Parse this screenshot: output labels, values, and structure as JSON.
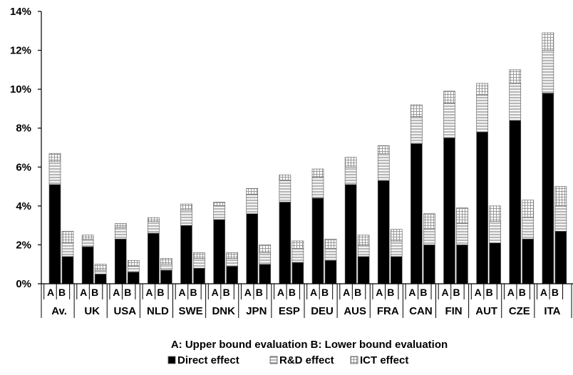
{
  "chart_data": {
    "type": "bar",
    "stacked": true,
    "title": "",
    "xlabel": "",
    "ylabel": "",
    "ylim": [
      0,
      14
    ],
    "y_ticks": [
      "0%",
      "2%",
      "4%",
      "6%",
      "8%",
      "10%",
      "12%",
      "14%"
    ],
    "grid": false,
    "legend_placement": "bottom",
    "bar_labels": [
      "A",
      "B"
    ],
    "categories": [
      "Av.",
      "UK",
      "USA",
      "NLD",
      "SWE",
      "DNK",
      "JPN",
      "ESP",
      "DEU",
      "AUS",
      "FRA",
      "CAN",
      "FIN",
      "AUT",
      "CZE",
      "ITA"
    ],
    "note": "A: Upper bound evaluation   B: Lower bound evaluation",
    "series": [
      {
        "name": "Direct effect",
        "color": "#000000",
        "pattern": "solid",
        "A": [
          5.1,
          1.9,
          2.3,
          2.6,
          3.0,
          3.3,
          3.6,
          4.2,
          4.4,
          5.1,
          5.3,
          7.2,
          7.5,
          7.8,
          8.4,
          9.8
        ],
        "B": [
          1.4,
          0.5,
          0.6,
          0.7,
          0.8,
          0.9,
          1.0,
          1.1,
          1.2,
          1.4,
          1.4,
          2.0,
          2.0,
          2.1,
          2.3,
          2.7
        ]
      },
      {
        "name": "R&D effect",
        "color": "#bfbfbf",
        "pattern": "horizontal-lines",
        "A": [
          1.2,
          0.4,
          0.6,
          0.6,
          0.8,
          0.7,
          1.0,
          1.1,
          1.1,
          0.9,
          1.4,
          1.4,
          1.8,
          1.9,
          1.9,
          2.2
        ],
        "B": [
          0.7,
          0.2,
          0.3,
          0.3,
          0.5,
          0.4,
          0.6,
          0.7,
          0.6,
          0.6,
          0.8,
          0.8,
          1.1,
          1.1,
          1.1,
          1.3
        ]
      },
      {
        "name": "ICT effect",
        "color": "#d9d9d9",
        "pattern": "grid",
        "A": [
          0.4,
          0.2,
          0.2,
          0.2,
          0.3,
          0.2,
          0.3,
          0.3,
          0.4,
          0.5,
          0.4,
          0.6,
          0.6,
          0.6,
          0.7,
          0.9
        ],
        "B": [
          0.6,
          0.3,
          0.3,
          0.3,
          0.3,
          0.3,
          0.4,
          0.4,
          0.5,
          0.5,
          0.6,
          0.8,
          0.8,
          0.8,
          0.9,
          1.0
        ]
      }
    ]
  }
}
